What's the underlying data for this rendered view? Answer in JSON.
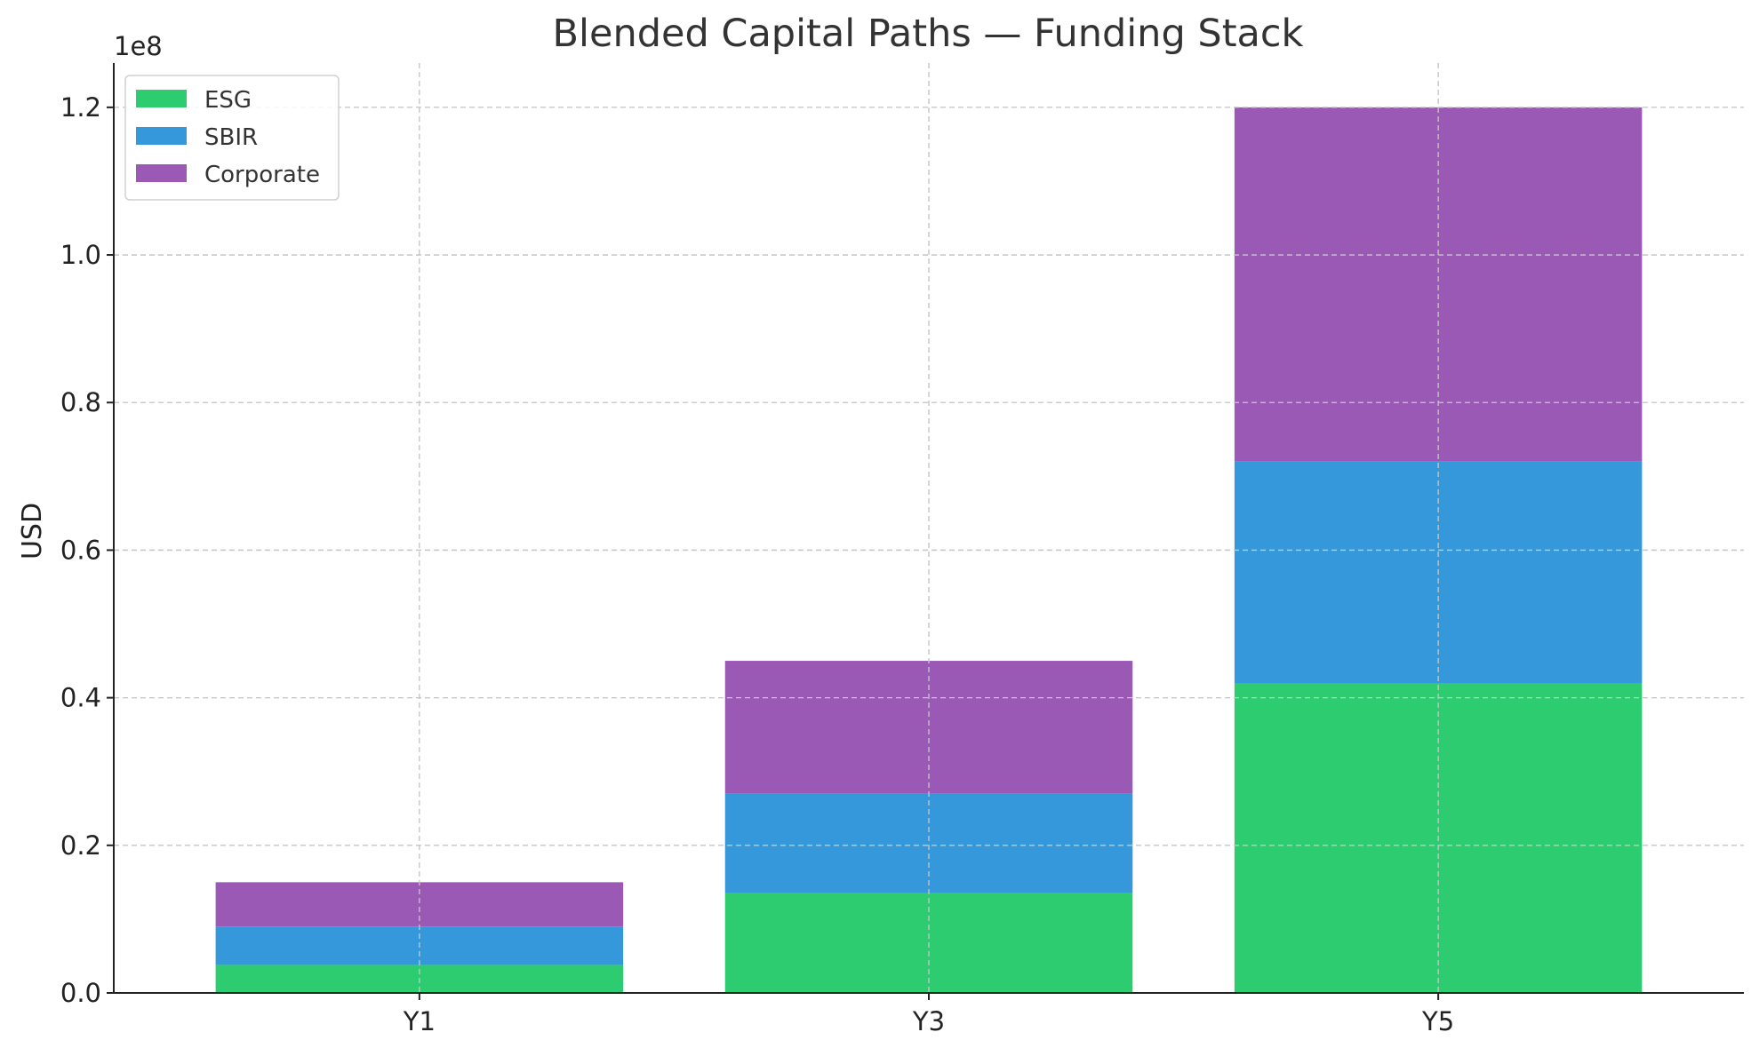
{
  "chart_data": {
    "type": "bar",
    "stacked": true,
    "title": "Blended Capital Paths — Funding Stack",
    "xlabel": "",
    "ylabel": "USD",
    "y_offset_label": "1e8",
    "categories": [
      "Y1",
      "Y3",
      "Y5"
    ],
    "series": [
      {
        "name": "ESG",
        "color": "#2ecc71",
        "values": [
          3800000,
          13500000,
          42000000
        ]
      },
      {
        "name": "SBIR",
        "color": "#3498db",
        "values": [
          5200000,
          13500000,
          30000000
        ]
      },
      {
        "name": "Corporate",
        "color": "#9b59b6",
        "values": [
          6000000,
          18000000,
          48000000
        ]
      }
    ],
    "ylim": [
      0,
      126000000
    ],
    "y_ticks": [
      0,
      20000000,
      40000000,
      60000000,
      80000000,
      100000000,
      120000000
    ],
    "y_tick_labels": [
      "0.0",
      "0.2",
      "0.4",
      "0.6",
      "0.8",
      "1.0",
      "1.2"
    ],
    "grid": true,
    "legend_position": "top-left"
  }
}
